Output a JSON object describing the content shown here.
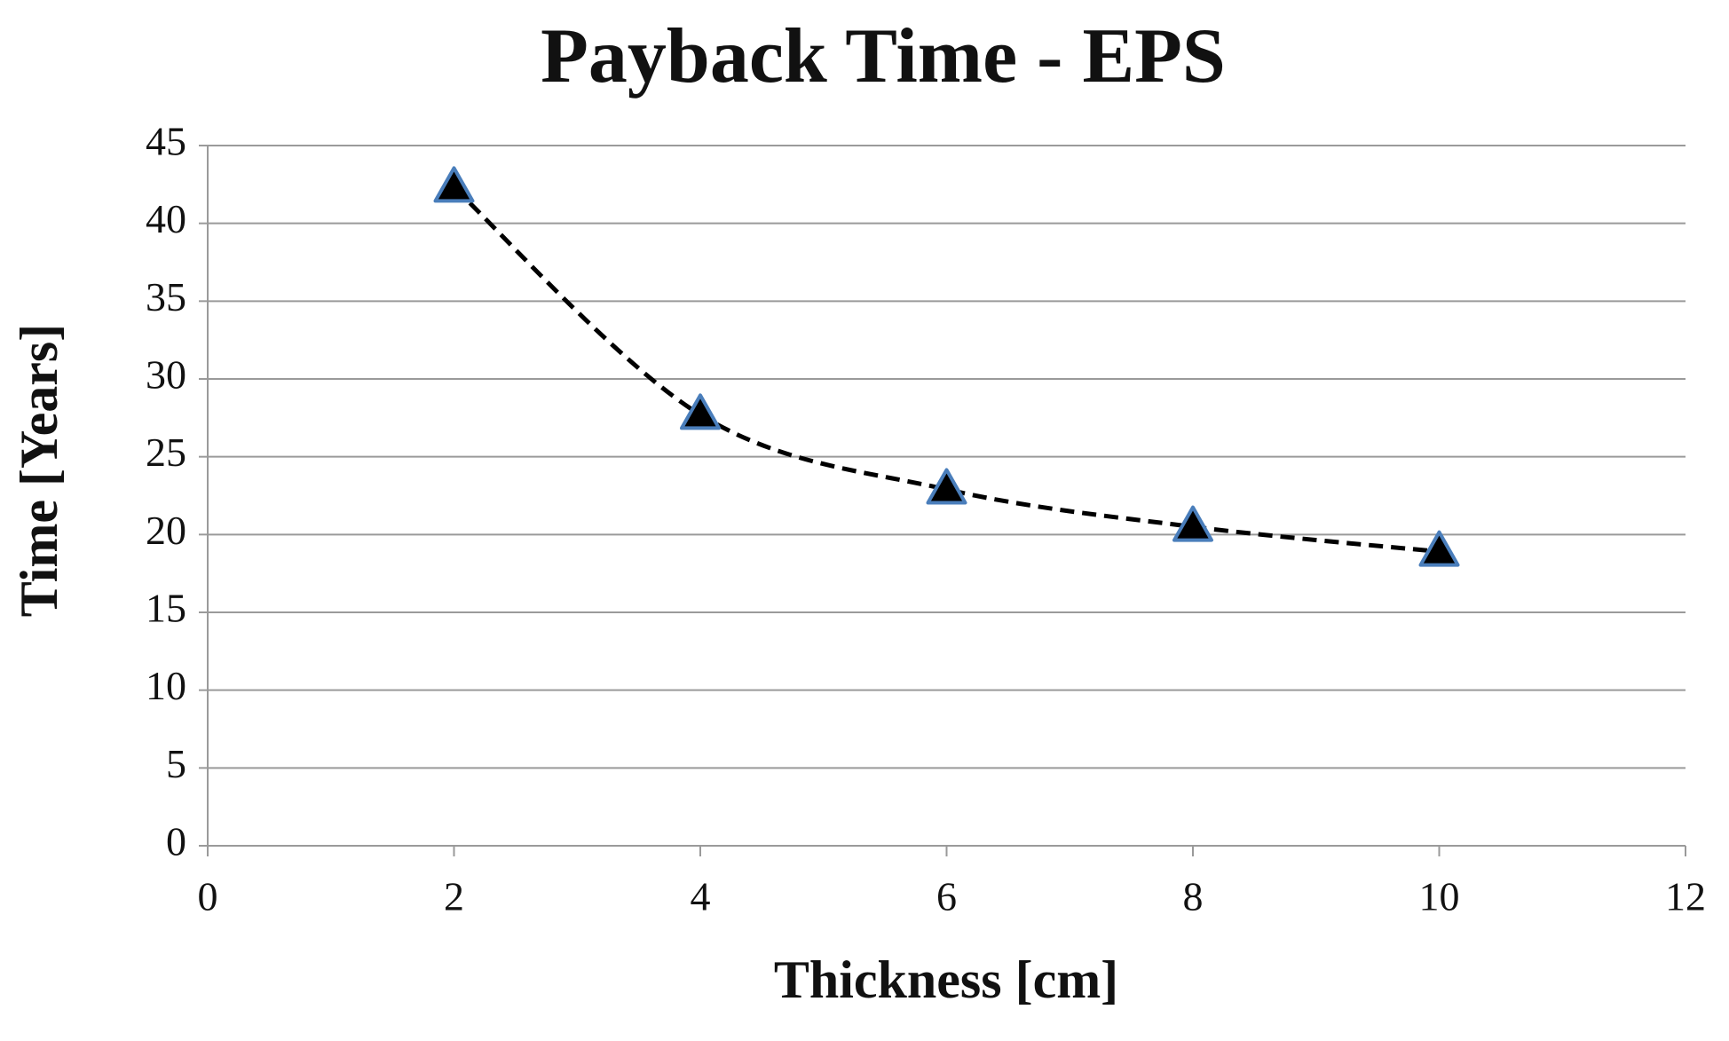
{
  "chart_data": {
    "type": "scatter",
    "title": "Payback Time - EPS",
    "x_label": "Thickness [cm]",
    "y_label": "Time [Years]",
    "x": [
      2,
      4,
      6,
      8,
      10
    ],
    "values": [
      42.3,
      27.7,
      22.9,
      20.5,
      18.9
    ],
    "color": "#000000",
    "marker_edge_color": "#4a7ebb",
    "marker": "triangle",
    "line_dashed": true,
    "line_smooth": true,
    "xlim": [
      0,
      12
    ],
    "xticks": [
      0,
      2,
      4,
      6,
      8,
      10,
      12
    ],
    "ylim": [
      0,
      45
    ],
    "yticks": [
      0,
      5,
      10,
      15,
      20,
      25,
      30,
      35,
      40,
      45
    ],
    "grid": true
  }
}
